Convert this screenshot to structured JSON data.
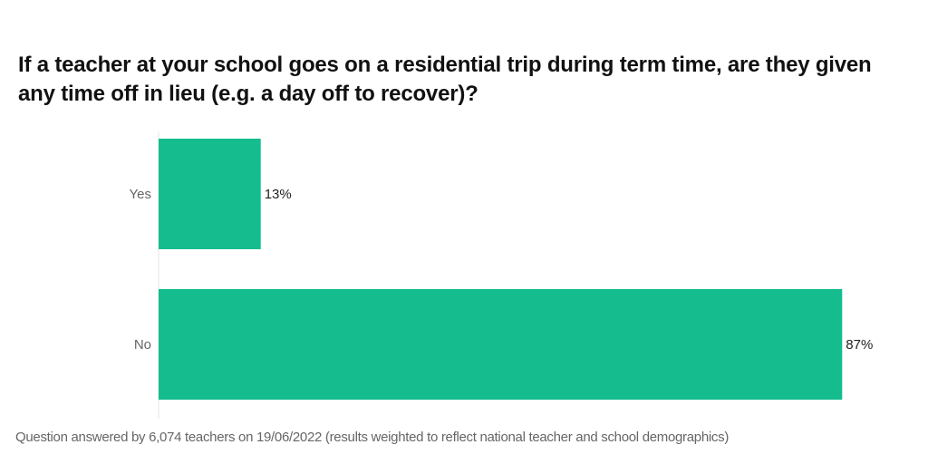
{
  "chart_data": {
    "type": "bar",
    "orientation": "horizontal",
    "title": "If a teacher at your school goes on a residential trip during term time, are they given any time off in lieu (e.g. a day off to recover)?",
    "categories": [
      "Yes",
      "No"
    ],
    "values": [
      13,
      87
    ],
    "data_labels": [
      "13%",
      "87%"
    ],
    "xlim": [
      0,
      100
    ],
    "grid": false,
    "color": "#14bc8e",
    "footnote": "Question answered by 6,074 teachers on 19/06/2022 (results weighted to reflect national teacher and school demographics)"
  }
}
